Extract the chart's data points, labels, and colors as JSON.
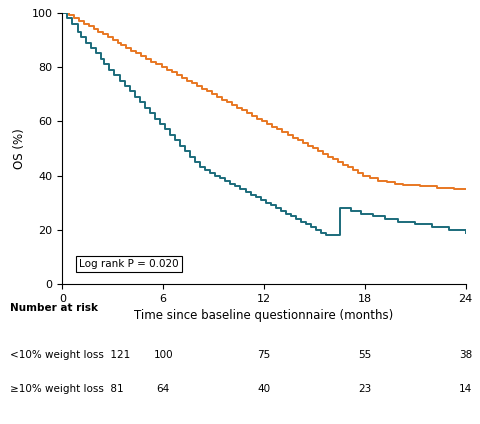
{
  "xlabel": "Time since baseline questionnaire (months)",
  "ylabel": "OS (%)",
  "xlim": [
    0,
    24
  ],
  "ylim": [
    0,
    100
  ],
  "xticks": [
    0,
    6,
    12,
    18,
    24
  ],
  "yticks": [
    0,
    20,
    40,
    60,
    80,
    100
  ],
  "color_orange": "#E87722",
  "color_teal": "#1B6B7B",
  "log_rank_text": "Log rank P = 0.020",
  "number_at_risk_label": "Number at risk",
  "group1_label": "<10% weight loss",
  "group2_label": "≥10% weight loss",
  "group1_at_risk": [
    121,
    100,
    75,
    55,
    38
  ],
  "group2_at_risk": [
    81,
    64,
    40,
    23,
    14
  ],
  "at_risk_times": [
    0,
    6,
    12,
    18,
    24
  ],
  "orange_times": [
    0,
    0.4,
    0.7,
    1.0,
    1.3,
    1.6,
    1.9,
    2.1,
    2.4,
    2.7,
    3.0,
    3.3,
    3.5,
    3.8,
    4.1,
    4.4,
    4.7,
    5.0,
    5.3,
    5.6,
    5.9,
    6.2,
    6.5,
    6.8,
    7.1,
    7.4,
    7.7,
    8.0,
    8.3,
    8.6,
    8.9,
    9.2,
    9.5,
    9.8,
    10.1,
    10.4,
    10.7,
    11.0,
    11.3,
    11.6,
    11.9,
    12.2,
    12.5,
    12.8,
    13.1,
    13.4,
    13.7,
    14.0,
    14.3,
    14.6,
    14.9,
    15.2,
    15.5,
    15.8,
    16.1,
    16.4,
    16.7,
    17.0,
    17.3,
    17.6,
    17.9,
    18.3,
    18.8,
    19.3,
    19.8,
    20.3,
    20.8,
    21.3,
    21.8,
    22.3,
    22.8,
    23.3,
    23.8,
    24.0
  ],
  "orange_surv": [
    100,
    99,
    98,
    97,
    96,
    95,
    94,
    93,
    92,
    91,
    90,
    89,
    88,
    87,
    86,
    85,
    84,
    83,
    82,
    81,
    80,
    79,
    78,
    77,
    76,
    75,
    74,
    73,
    72,
    71,
    70,
    69,
    68,
    67,
    66,
    65,
    64,
    63,
    62,
    61,
    60,
    59,
    58,
    57,
    56,
    55,
    54,
    53,
    52,
    51,
    50,
    49,
    48,
    47,
    46,
    45,
    44,
    43,
    42,
    41,
    40,
    39,
    38,
    37.5,
    37,
    36.5,
    36.5,
    36,
    36,
    35.5,
    35.5,
    35,
    35,
    35
  ],
  "teal_times": [
    0,
    0.3,
    0.6,
    0.9,
    1.1,
    1.4,
    1.7,
    2.0,
    2.3,
    2.5,
    2.8,
    3.1,
    3.4,
    3.7,
    4.0,
    4.3,
    4.6,
    4.9,
    5.2,
    5.5,
    5.8,
    6.1,
    6.4,
    6.7,
    7.0,
    7.3,
    7.6,
    7.9,
    8.2,
    8.5,
    8.8,
    9.1,
    9.4,
    9.7,
    10.0,
    10.3,
    10.6,
    10.9,
    11.2,
    11.5,
    11.8,
    12.1,
    12.4,
    12.7,
    13.0,
    13.3,
    13.6,
    13.9,
    14.2,
    14.5,
    14.8,
    15.1,
    15.4,
    15.7,
    16.5,
    17.2,
    17.8,
    18.5,
    19.2,
    20.0,
    21.0,
    22.0,
    23.0,
    24.0
  ],
  "teal_surv": [
    100,
    98,
    96,
    93,
    91,
    89,
    87,
    85,
    83,
    81,
    79,
    77,
    75,
    73,
    71,
    69,
    67,
    65,
    63,
    61,
    59,
    57,
    55,
    53,
    51,
    49,
    47,
    45,
    43,
    42,
    41,
    40,
    39,
    38,
    37,
    36,
    35,
    34,
    33,
    32,
    31,
    30,
    29,
    28,
    27,
    26,
    25,
    24,
    23,
    22,
    21,
    20,
    19,
    18,
    28,
    27,
    26,
    25,
    24,
    23,
    22,
    21,
    20,
    19
  ]
}
